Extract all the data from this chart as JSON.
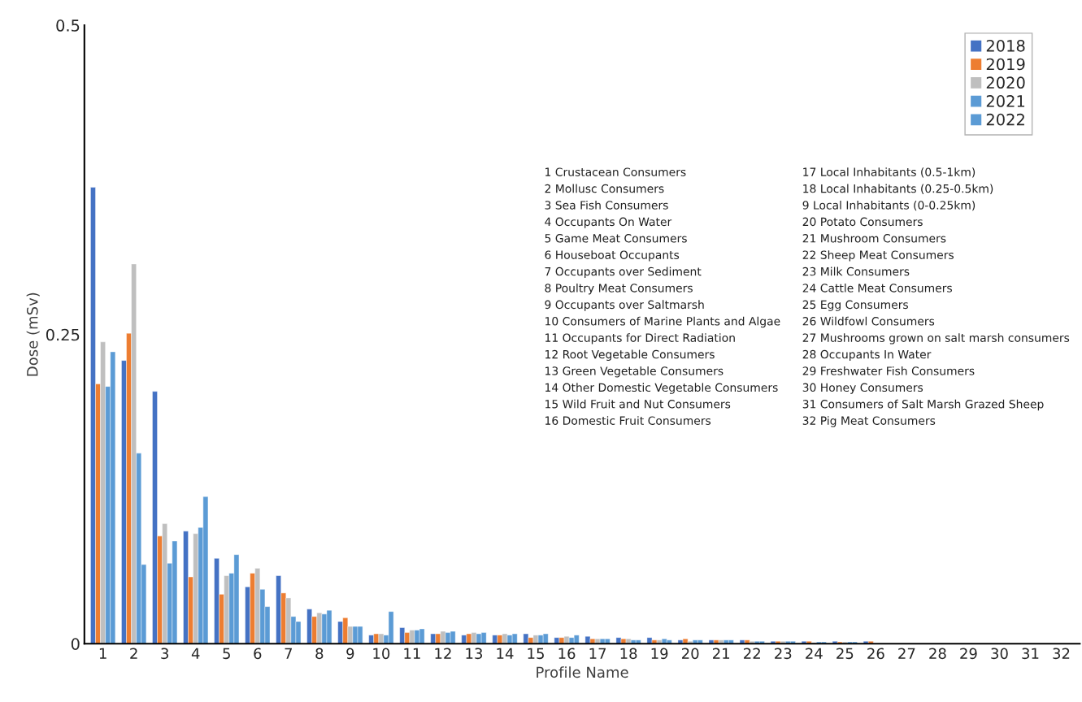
{
  "chart_data": {
    "type": "bar",
    "xlabel": "Profile Name",
    "ylabel": "Dose (mSv)",
    "categories": [
      "1",
      "2",
      "3",
      "4",
      "5",
      "6",
      "7",
      "8",
      "9",
      "10",
      "11",
      "12",
      "13",
      "14",
      "15",
      "16",
      "17",
      "18",
      "19",
      "20",
      "21",
      "22",
      "23",
      "24",
      "25",
      "26",
      "27",
      "28",
      "29",
      "30",
      "31",
      "32"
    ],
    "series": [
      {
        "name": "2018",
        "color": "#4472c4",
        "values": [
          0.369,
          0.229,
          0.204,
          0.091,
          0.069,
          0.046,
          0.055,
          0.028,
          0.018,
          0.007,
          0.013,
          0.008,
          0.007,
          0.007,
          0.008,
          0.005,
          0.006,
          0.005,
          0.005,
          0.003,
          0.003,
          0.003,
          0.002,
          0.002,
          0.002,
          0.002,
          null,
          null,
          null,
          null,
          null,
          null
        ]
      },
      {
        "name": "2019",
        "color": "#ed7d31",
        "values": [
          0.21,
          0.251,
          0.087,
          0.054,
          0.04,
          0.057,
          0.041,
          0.022,
          0.021,
          0.008,
          0.009,
          0.008,
          0.008,
          0.007,
          0.005,
          0.005,
          0.004,
          0.004,
          0.003,
          0.004,
          0.003,
          0.003,
          0.002,
          0.002,
          0.0015,
          0.002,
          null,
          null,
          null,
          null,
          null,
          null
        ]
      },
      {
        "name": "2020",
        "color": "#bfbfbf",
        "values": [
          0.244,
          0.307,
          0.097,
          0.089,
          0.055,
          0.061,
          0.037,
          0.025,
          0.014,
          0.008,
          0.011,
          0.01,
          0.009,
          0.008,
          0.007,
          0.006,
          0.004,
          0.004,
          0.003,
          0.002,
          0.003,
          0.002,
          0.002,
          0.001,
          0.0015,
          null,
          null,
          null,
          null,
          null,
          null,
          null
        ]
      },
      {
        "name": "2021",
        "color": "#5b9bd5",
        "values": [
          0.208,
          0.154,
          0.065,
          0.094,
          0.057,
          0.044,
          0.022,
          0.024,
          0.014,
          0.007,
          0.011,
          0.009,
          0.008,
          0.007,
          0.007,
          0.005,
          0.004,
          0.003,
          0.004,
          0.003,
          0.003,
          0.002,
          0.002,
          0.0015,
          0.0015,
          null,
          null,
          null,
          null,
          null,
          null,
          null
        ]
      },
      {
        "name": "2022",
        "color": "#5b9bd5",
        "values": [
          0.236,
          0.064,
          0.083,
          0.119,
          0.072,
          0.03,
          0.018,
          0.027,
          0.014,
          0.026,
          0.012,
          0.01,
          0.009,
          0.008,
          0.008,
          0.007,
          0.004,
          0.003,
          0.003,
          0.003,
          0.003,
          0.002,
          0.002,
          0.0015,
          0.0015,
          null,
          null,
          null,
          null,
          null,
          null,
          null
        ]
      }
    ],
    "ylim": [
      0,
      0.5
    ],
    "yticks": [
      0,
      0.25,
      0.5
    ],
    "grid": false,
    "legend": "top right",
    "annotations": [
      "1 Crustacean Consumers",
      "2 Mollusc Consumers",
      "3 Sea Fish Consumers",
      "4 Occupants On Water",
      "5 Game Meat Consumers",
      "6 Houseboat Occupants",
      "7 Occupants over Sediment",
      "8 Poultry Meat Consumers",
      "9 Occupants over Saltmarsh",
      "10 Consumers of Marine Plants and Algae",
      "11 Occupants for Direct Radiation",
      "12 Root Vegetable Consumers",
      "13 Green Vegetable Consumers",
      "14 Other Domestic Vegetable Consumers",
      "15 Wild Fruit and Nut Consumers",
      "16 Domestic Fruit Consumers",
      "17 Local Inhabitants (0.5-1km)",
      "18 Local Inhabitants (0.25-0.5km)",
      "9 Local Inhabitants (0-0.25km)",
      "20 Potato Consumers",
      "21 Mushroom Consumers",
      "22 Sheep Meat Consumers",
      "23 Milk Consumers",
      "24 Cattle Meat Consumers",
      "25 Egg Consumers",
      "26 Wildfowl Consumers",
      "27 Mushrooms grown on salt marsh consumers",
      "28 Occupants In Water",
      "29 Freshwater Fish Consumers",
      "30 Honey Consumers",
      "31 Consumers of Salt Marsh Grazed Sheep",
      "32 Pig Meat Consumers"
    ]
  }
}
